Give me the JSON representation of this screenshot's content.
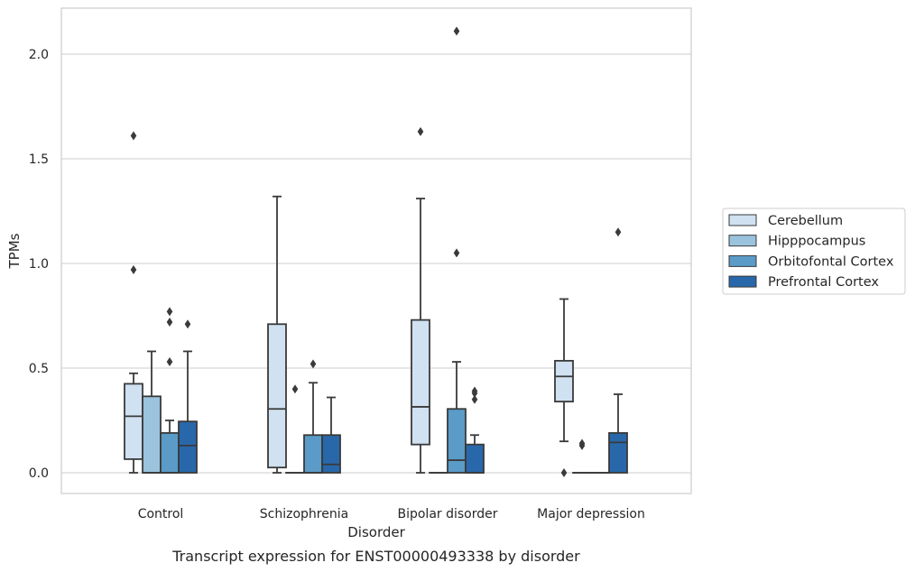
{
  "chart_data": {
    "type": "box",
    "title": "Transcript expression for ENST00000493338 by disorder",
    "xlabel": "Disorder",
    "ylabel": "TPMs",
    "ylim": [
      -0.1,
      2.23
    ],
    "yticks": [
      "0.0",
      "0.5",
      "1.0",
      "1.5",
      "2.0"
    ],
    "ytick_values": [
      0,
      0.5,
      1.0,
      1.5,
      2.0
    ],
    "grid": true,
    "legend_position": "right",
    "categories": [
      "Control",
      "Schizophrenia",
      "Bipolar disorder",
      "Major depression"
    ],
    "series": [
      {
        "name": "Cerebellum",
        "color": "#d0e1f1",
        "boxes": [
          {
            "whisker_low": 0,
            "q1": 0.065,
            "median": 0.27,
            "q3": 0.425,
            "whisker_high": 0.475,
            "outliers": [
              0.97,
              1.61
            ]
          },
          {
            "whisker_low": 0,
            "q1": 0.025,
            "median": 0.305,
            "q3": 0.71,
            "whisker_high": 1.32,
            "outliers": []
          },
          {
            "whisker_low": 0,
            "q1": 0.135,
            "median": 0.315,
            "q3": 0.73,
            "whisker_high": 1.31,
            "outliers": [
              1.63
            ]
          },
          {
            "whisker_low": 0.15,
            "q1": 0.34,
            "median": 0.46,
            "q3": 0.535,
            "whisker_high": 0.83,
            "outliers": [
              0
            ]
          }
        ]
      },
      {
        "name": "Hipppocampus",
        "color": "#9bc3de",
        "boxes": [
          {
            "whisker_low": 0,
            "q1": 0,
            "median": 0,
            "q3": 0.365,
            "whisker_high": 0.58,
            "outliers": []
          },
          {
            "whisker_low": 0,
            "q1": 0,
            "median": 0,
            "q3": 0,
            "whisker_high": 0,
            "outliers": [
              0.4
            ]
          },
          {
            "whisker_low": 0,
            "q1": 0,
            "median": 0,
            "q3": 0,
            "whisker_high": 0,
            "outliers": []
          },
          {
            "whisker_low": 0,
            "q1": 0,
            "median": 0,
            "q3": 0,
            "whisker_high": 0,
            "outliers": [
              0.13,
              0.14
            ]
          }
        ]
      },
      {
        "name": "Orbitofontal Cortex",
        "color": "#5a9bc8",
        "boxes": [
          {
            "whisker_low": 0,
            "q1": 0,
            "median": 0,
            "q3": 0.19,
            "whisker_high": 0.25,
            "outliers": [
              0.53,
              0.72,
              0.77
            ]
          },
          {
            "whisker_low": 0,
            "q1": 0,
            "median": 0,
            "q3": 0.18,
            "whisker_high": 0.43,
            "outliers": [
              0.52
            ]
          },
          {
            "whisker_low": 0,
            "q1": 0,
            "median": 0.06,
            "q3": 0.305,
            "whisker_high": 0.53,
            "outliers": [
              1.05,
              2.11
            ]
          },
          {
            "whisker_low": 0,
            "q1": 0,
            "median": 0,
            "q3": 0,
            "whisker_high": 0,
            "outliers": []
          }
        ]
      },
      {
        "name": "Prefrontal Cortex",
        "color": "#2868aa",
        "boxes": [
          {
            "whisker_low": 0,
            "q1": 0,
            "median": 0.13,
            "q3": 0.245,
            "whisker_high": 0.58,
            "outliers": [
              0.71
            ]
          },
          {
            "whisker_low": 0,
            "q1": 0,
            "median": 0.04,
            "q3": 0.18,
            "whisker_high": 0.36,
            "outliers": []
          },
          {
            "whisker_low": 0,
            "q1": 0,
            "median": 0,
            "q3": 0.135,
            "whisker_high": 0.18,
            "outliers": [
              0.35,
              0.38,
              0.39
            ]
          },
          {
            "whisker_low": 0,
            "q1": 0,
            "median": 0.145,
            "q3": 0.19,
            "whisker_high": 0.375,
            "outliers": [
              1.15
            ]
          }
        ]
      }
    ]
  }
}
